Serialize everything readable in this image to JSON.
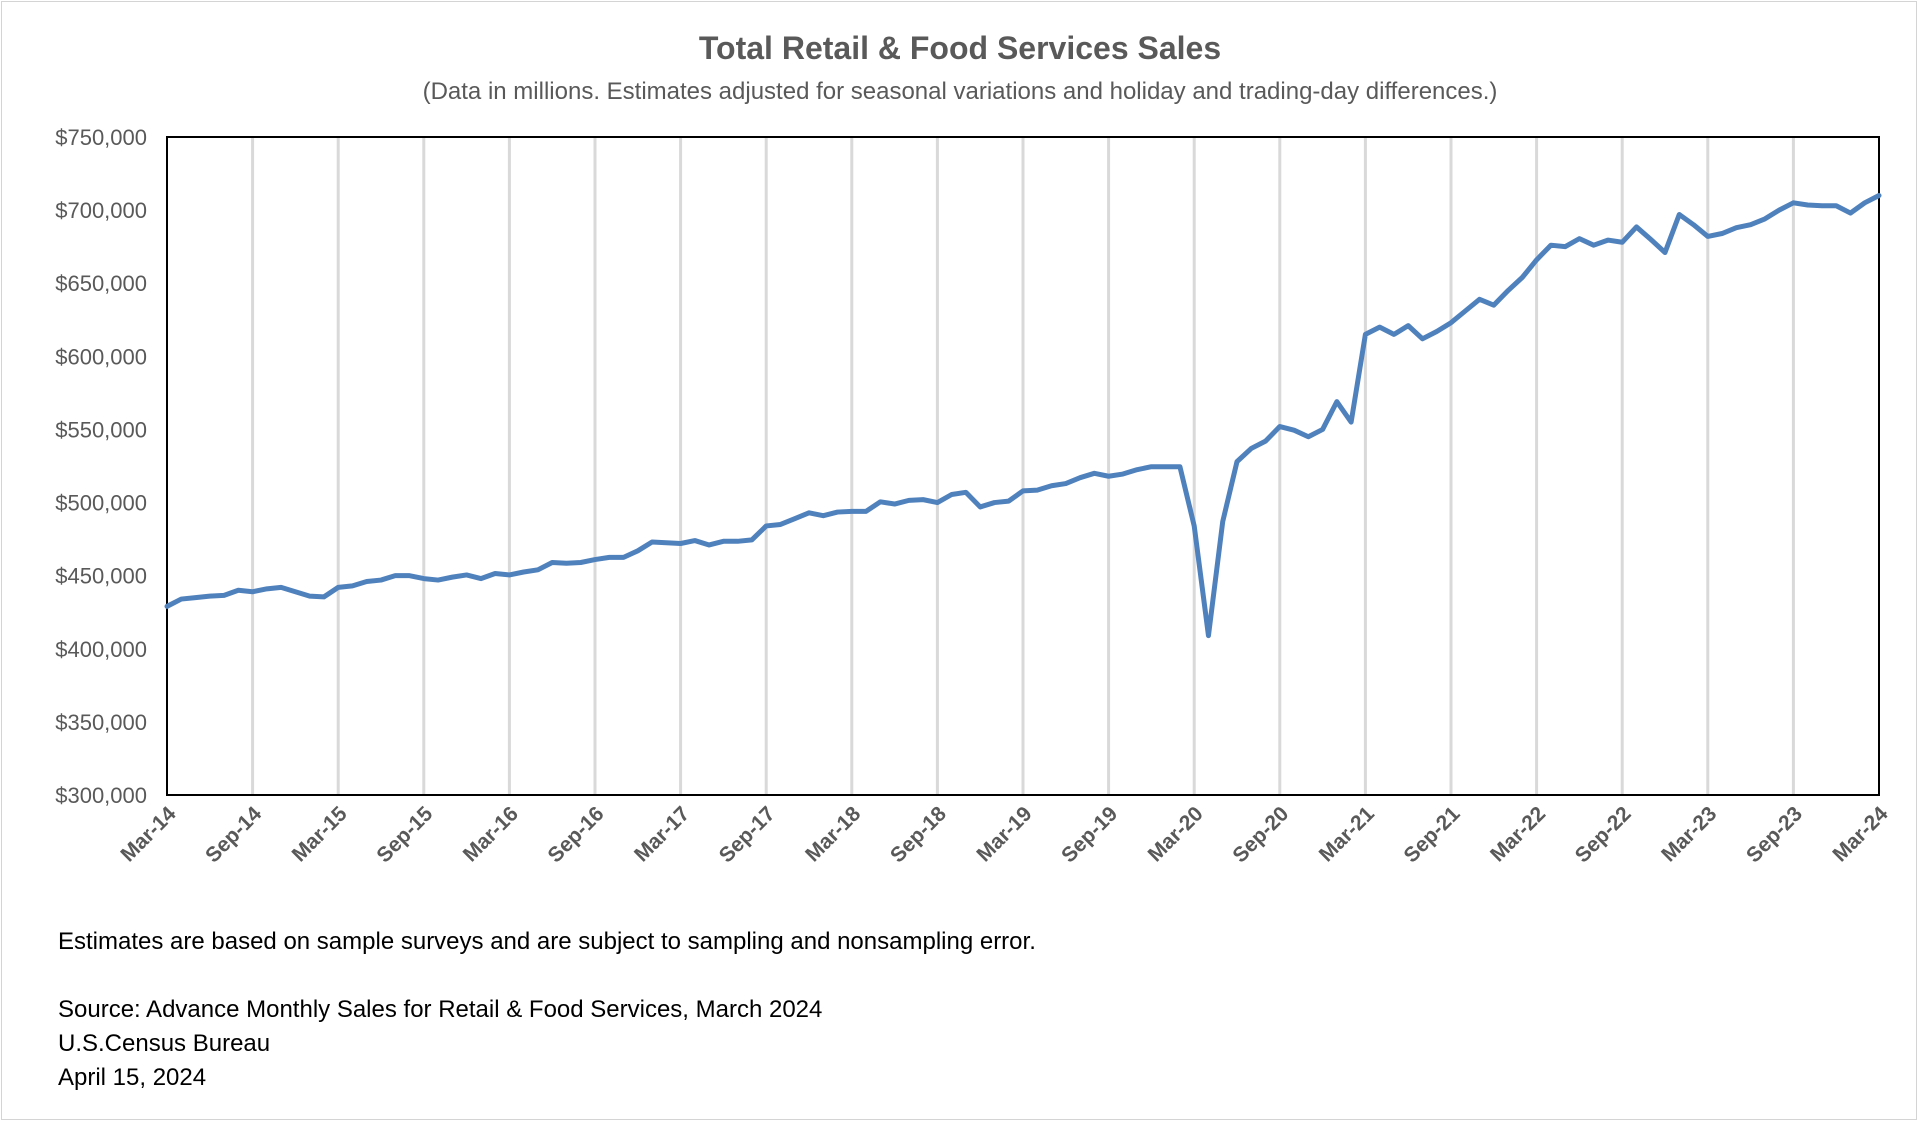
{
  "title": "Total Retail & Food Services Sales",
  "subtitle": "(Data in millions. Estimates adjusted for seasonal variations and holiday and trading-day differences.)",
  "notes": {
    "estimates": "Estimates are based on sample surveys and are subject to sampling and nonsampling error.",
    "source": "Source: Advance Monthly Sales for Retail & Food Services, March 2024",
    "agency": "U.S.Census Bureau",
    "date": "April 15, 2024"
  },
  "chart_data": {
    "type": "line",
    "title": "Total Retail & Food Services Sales",
    "xlabel": "",
    "ylabel": "",
    "ylim": [
      300000,
      750000
    ],
    "y_ticks": [
      "$300,000",
      "$350,000",
      "$400,000",
      "$450,000",
      "$500,000",
      "$550,000",
      "$600,000",
      "$650,000",
      "$700,000",
      "$750,000"
    ],
    "x_ticks": [
      "Mar-14",
      "Sep-14",
      "Mar-15",
      "Sep-15",
      "Mar-16",
      "Sep-16",
      "Mar-17",
      "Sep-17",
      "Mar-18",
      "Sep-18",
      "Mar-19",
      "Sep-19",
      "Mar-20",
      "Sep-20",
      "Mar-21",
      "Sep-21",
      "Mar-22",
      "Sep-22",
      "Mar-23",
      "Sep-23",
      "Mar-24"
    ],
    "x_start": "Mar-14",
    "x_end": "Mar-24",
    "grid": "vertical",
    "color": "#4f81bd",
    "series": [
      {
        "values": [
          429000,
          434000,
          435000,
          436000,
          436500,
          440000,
          439000,
          441000,
          442000,
          439000,
          436000,
          435500,
          442000,
          443000,
          446000,
          447000,
          450000,
          450000,
          448000,
          447000,
          449000,
          450500,
          448000,
          451500,
          450500,
          452500,
          454000,
          459000,
          458500,
          459000,
          461000,
          462500,
          462500,
          467000,
          473000,
          472500,
          472000,
          474000,
          471000,
          473500,
          473500,
          474500,
          484000,
          485000,
          489000,
          493000,
          491000,
          493500,
          494000,
          494000,
          500500,
          499000,
          501500,
          502000,
          500000,
          505500,
          507000,
          497000,
          500000,
          501000,
          508000,
          508500,
          511500,
          513000,
          517000,
          520000,
          518000,
          519500,
          522500,
          524500,
          524500,
          524500,
          484000,
          409000,
          487000,
          528000,
          537000,
          542000,
          552000,
          549500,
          545000,
          550000,
          569000,
          555000,
          615000,
          620000,
          615000,
          621000,
          612000,
          617000,
          623000,
          631000,
          639000,
          635000,
          645000,
          654000,
          666000,
          676000,
          675000,
          680500,
          676000,
          679500,
          678000,
          688500,
          680000,
          671000,
          697000,
          690000,
          682000,
          684000,
          688000,
          690000,
          694000,
          700000,
          705000,
          703500,
          703000,
          703000,
          698000,
          705000,
          710000
        ]
      }
    ]
  }
}
